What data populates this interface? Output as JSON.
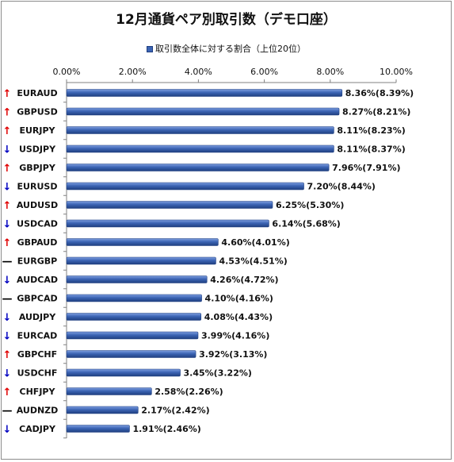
{
  "chart_data": {
    "type": "bar",
    "orientation": "horizontal",
    "title": "12月通貨ペア別取引数（デモ口座）",
    "series": [
      {
        "name": "取引数全体に対する割合（上位20位）"
      }
    ],
    "xlim": [
      0,
      10
    ],
    "xticks": [
      "0.00%",
      "2.00%",
      "4.00%",
      "6.00%",
      "8.00%",
      "10.00%"
    ],
    "x_axis_position": "top",
    "grid": false,
    "legend_position": "top",
    "colors": {
      "bar": "#3c64b4",
      "bar_dark": "#1f3f80",
      "up": "#e00000",
      "down": "#0000c0",
      "flat": "#000000"
    },
    "rows": [
      {
        "pair": "EURAUD",
        "trend": "up",
        "arrow": "↑",
        "value": 8.36,
        "label": "8.36%(8.39%)"
      },
      {
        "pair": "GBPUSD",
        "trend": "up",
        "arrow": "↑",
        "value": 8.27,
        "label": "8.27%(8.21%)"
      },
      {
        "pair": "EURJPY",
        "trend": "up",
        "arrow": "↑",
        "value": 8.11,
        "label": "8.11%(8.23%)"
      },
      {
        "pair": "USDJPY",
        "trend": "down",
        "arrow": "↓",
        "value": 8.11,
        "label": "8.11%(8.37%)"
      },
      {
        "pair": "GBPJPY",
        "trend": "up",
        "arrow": "↑",
        "value": 7.96,
        "label": "7.96%(7.91%)"
      },
      {
        "pair": "EURUSD",
        "trend": "down",
        "arrow": "↓",
        "value": 7.2,
        "label": "7.20%(8.44%)"
      },
      {
        "pair": "AUDUSD",
        "trend": "up",
        "arrow": "↑",
        "value": 6.25,
        "label": "6.25%(5.30%)"
      },
      {
        "pair": "USDCAD",
        "trend": "down",
        "arrow": "↓",
        "value": 6.14,
        "label": "6.14%(5.68%)"
      },
      {
        "pair": "GBPAUD",
        "trend": "up",
        "arrow": "↑",
        "value": 4.6,
        "label": "4.60%(4.01%)"
      },
      {
        "pair": "EURGBP",
        "trend": "flat",
        "arrow": "—",
        "value": 4.53,
        "label": "4.53%(4.51%)"
      },
      {
        "pair": "AUDCAD",
        "trend": "down",
        "arrow": "↓",
        "value": 4.26,
        "label": "4.26%(4.72%)"
      },
      {
        "pair": "GBPCAD",
        "trend": "flat",
        "arrow": "—",
        "value": 4.1,
        "label": "4.10%(4.16%)"
      },
      {
        "pair": "AUDJPY",
        "trend": "down",
        "arrow": "↓",
        "value": 4.08,
        "label": "4.08%(4.43%)"
      },
      {
        "pair": "EURCAD",
        "trend": "down",
        "arrow": "↓",
        "value": 3.99,
        "label": "3.99%(4.16%)"
      },
      {
        "pair": "GBPCHF",
        "trend": "up",
        "arrow": "↑",
        "value": 3.92,
        "label": "3.92%(3.13%)"
      },
      {
        "pair": "USDCHF",
        "trend": "down",
        "arrow": "↓",
        "value": 3.45,
        "label": "3.45%(3.22%)"
      },
      {
        "pair": "CHFJPY",
        "trend": "up",
        "arrow": "↑",
        "value": 2.58,
        "label": "2.58%(2.26%)"
      },
      {
        "pair": "AUDNZD",
        "trend": "flat",
        "arrow": "—",
        "value": 2.17,
        "label": "2.17%(2.42%)"
      },
      {
        "pair": "CADJPY",
        "trend": "down",
        "arrow": "↓",
        "value": 1.91,
        "label": "1.91%(2.46%)"
      }
    ]
  }
}
